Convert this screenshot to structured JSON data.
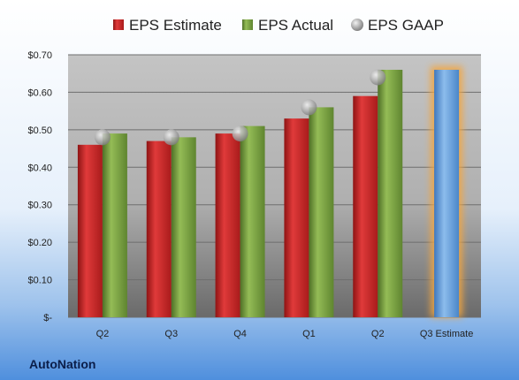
{
  "company": "AutoNation",
  "colors": {
    "estimate": "#cc2a2a",
    "actual": "#7aa044",
    "gaap": "#a9a9a9",
    "projected": "#6fa6dc",
    "projected_glow": "#f3a640"
  },
  "chart_data": {
    "type": "bar",
    "categories": [
      "Q2",
      "Q3",
      "Q4",
      "Q1",
      "Q2",
      "Q3 Estimate"
    ],
    "series": [
      {
        "name": "EPS Estimate",
        "values": [
          0.46,
          0.47,
          0.49,
          0.53,
          0.59,
          null
        ]
      },
      {
        "name": "EPS Actual",
        "values": [
          0.49,
          0.48,
          0.51,
          0.56,
          0.66,
          0.66
        ]
      },
      {
        "name": "EPS GAAP",
        "values": [
          0.48,
          0.48,
          0.49,
          0.56,
          0.64,
          null
        ]
      }
    ],
    "projected_category": "Q3 Estimate",
    "ylim": [
      0,
      0.7
    ],
    "yticks": [
      0,
      0.1,
      0.2,
      0.3,
      0.4,
      0.5,
      0.6,
      0.7
    ],
    "ytick_labels": [
      "$-",
      "$0.10",
      "$0.20",
      "$0.30",
      "$0.40",
      "$0.50",
      "$0.60",
      "$0.70"
    ],
    "legend_position": "top",
    "grid": true
  }
}
